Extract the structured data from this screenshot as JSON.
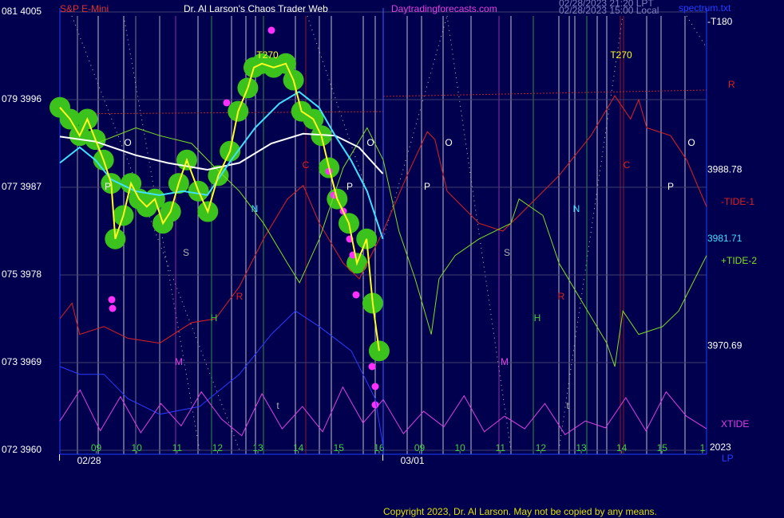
{
  "chart_data": {
    "type": "line",
    "symbol": "S&P E-Mini",
    "title": "Dr. Al Larson's Chaos Trader Web",
    "site": "Daytradingforecasts.com",
    "timestamps": [
      "02/28/2023 21:20 LPT",
      "02/28/2023 15:00 Local"
    ],
    "file": "spectrum.txt",
    "copyright": "Copyright 2023, Dr. Al Larson. May not be copied by any means.",
    "top_right_label": "-T180",
    "right_label": "R",
    "year": "2023",
    "timezone": "LP",
    "grid": true,
    "ylim": [
      3960,
      4005
    ],
    "yticks": [
      {
        "value": 3960,
        "label": "072 3960"
      },
      {
        "value": 3969,
        "label": "073 3969"
      },
      {
        "value": 3978,
        "label": "075 3978"
      },
      {
        "value": 3987,
        "label": "077 3987"
      },
      {
        "value": 3996,
        "label": "079 3996"
      },
      {
        "value": 4005,
        "label": "081 4005"
      }
    ],
    "xlim": [
      -0.9,
      15.1
    ],
    "xticks": [
      {
        "value": 0,
        "label": "09"
      },
      {
        "value": 1,
        "label": "10"
      },
      {
        "value": 2,
        "label": "11"
      },
      {
        "value": 3,
        "label": "12"
      },
      {
        "value": 4,
        "label": "13"
      },
      {
        "value": 5,
        "label": "14"
      },
      {
        "value": 6,
        "label": "15"
      },
      {
        "value": 7,
        "label": "16"
      },
      {
        "value": 8,
        "label": "09"
      },
      {
        "value": 9,
        "label": "10"
      },
      {
        "value": 10,
        "label": "11"
      },
      {
        "value": 11,
        "label": "12"
      },
      {
        "value": 12,
        "label": "13"
      },
      {
        "value": 13,
        "label": "14"
      },
      {
        "value": 14,
        "label": "15"
      },
      {
        "value": 15,
        "label": "1"
      }
    ],
    "dates": [
      {
        "value": 0,
        "label": "02/28"
      },
      {
        "value": 8,
        "label": "03/01"
      }
    ],
    "price_labels": [
      3988.78,
      3981.71,
      3970.69
    ],
    "annotations": [
      "O",
      "O",
      "O",
      "O",
      "P",
      "P",
      "P",
      "P",
      "S",
      "S",
      "N",
      "N",
      "R",
      "R",
      "H",
      "H",
      "M",
      "M",
      "C",
      "C",
      "t",
      "t",
      "T270",
      "T270"
    ],
    "series": [
      {
        "color": "#2a3cff",
        "x": [
          -0.9,
          -0.41,
          0.19,
          0.78,
          1.57,
          2.56,
          3.54,
          4.33,
          4.93,
          5.52,
          6.31,
          6.9,
          7.1
        ],
        "values": [
          3968.6,
          3967.8,
          3967.8,
          3965.3,
          3963.7,
          3964.5,
          3967.8,
          3971.9,
          3974.3,
          3972.7,
          3970.2,
          3965.3,
          3960.4
        ]
      },
      {
        "name": "XTIDE",
        "color": "#e040e0",
        "x": [
          -0.9,
          -0.4,
          0.1,
          0.6,
          1.1,
          1.6,
          2.1,
          2.6,
          3.1,
          3.6,
          4.1,
          4.6,
          5.1,
          5.6,
          6.1,
          6.6,
          7.1,
          7.6,
          8.1,
          8.6,
          9.1,
          9.6,
          10.1,
          10.6,
          11.1,
          11.6,
          12.1,
          12.6,
          13.1,
          13.6,
          14.1,
          14.6,
          15.1
        ],
        "values": [
          3963.0,
          3966.2,
          3962.0,
          3965.5,
          3961.8,
          3964.8,
          3962.5,
          3966.0,
          3963.2,
          3961.5,
          3965.8,
          3962.2,
          3964.5,
          3961.9,
          3966.5,
          3962.8,
          3965.2,
          3961.7,
          3964.0,
          3962.4,
          3965.6,
          3961.9,
          3963.5,
          3962.2,
          3964.8,
          3961.6,
          3963.0,
          3962.3,
          3965.4,
          3962.0,
          3966.0,
          3963.5,
          3962.2
        ]
      },
      {
        "name": "-TIDE-1",
        "color": "#e02020",
        "x": [
          -0.9,
          -0.6,
          -0.41,
          0.19,
          0.78,
          1.57,
          2.36,
          2.95,
          3.54,
          4.14,
          4.73,
          5.12,
          5.52,
          6.11,
          6.51,
          7.1,
          7.69,
          8.19,
          8.38,
          8.68,
          9.47,
          10.06,
          10.46,
          11.45,
          12.24,
          12.83,
          13.22,
          13.42,
          13.62,
          14.21,
          14.61,
          15.1
        ],
        "values": [
          3973.5,
          3975.1,
          3971.9,
          3972.7,
          3971.5,
          3971.0,
          3973.1,
          3973.5,
          3976.8,
          3981.7,
          3985.8,
          3987.2,
          3983.3,
          3979.2,
          3977.6,
          3982.5,
          3988.2,
          3992.7,
          3991.9,
          3986.6,
          3983.3,
          3982.5,
          3984.1,
          3988.2,
          3992.3,
          3996.4,
          3994.0,
          3996.0,
          3993.1,
          3992.3,
          3989.8,
          3985.0
        ]
      },
      {
        "name": "+TIDE-2",
        "color": "#80e020",
        "x": [
          -0.01,
          0.98,
          1.57,
          2.36,
          2.95,
          3.54,
          4.14,
          4.73,
          5.03,
          5.52,
          6.11,
          6.7,
          7.1,
          7.49,
          7.89,
          8.29,
          8.48,
          8.88,
          9.47,
          10.26,
          10.46,
          11.05,
          11.45,
          12.04,
          12.63,
          12.83,
          13.03,
          13.42,
          14.01,
          14.41,
          15.1
        ],
        "values": [
          3991.5,
          3993.1,
          3992.3,
          3991.5,
          3989.0,
          3986.6,
          3983.3,
          3979.2,
          3977.2,
          3981.7,
          3989.0,
          3993.1,
          3989.8,
          3982.5,
          3977.6,
          3971.9,
          3977.6,
          3980.0,
          3981.7,
          3983.3,
          3985.8,
          3984.1,
          3979.2,
          3975.1,
          3971.0,
          3968.6,
          3974.3,
          3971.9,
          3972.7,
          3974.3,
          3980.0
        ]
      },
      {
        "color": "#ffffff",
        "x": [
          -0.9,
          -0.02,
          0.97,
          1.76,
          2.75,
          3.54,
          4.33,
          5.12,
          5.91,
          6.5,
          7.09
        ],
        "values": [
          3992.2,
          3991.7,
          3990.3,
          3989.5,
          3988.8,
          3989.5,
          3991.5,
          3992.5,
          3992.3,
          3991.1,
          3988.4
        ]
      },
      {
        "color": "#40e0ff",
        "x": [
          -0.9,
          -0.41,
          -0.02,
          0.37,
          0.97,
          1.56,
          2.15,
          2.75,
          3.34,
          3.93,
          4.53,
          5.02,
          5.51,
          5.91,
          6.3,
          6.7,
          7.09
        ],
        "values": [
          3989.5,
          3991.1,
          3989.8,
          3987.8,
          3986.6,
          3986.2,
          3986.6,
          3986.2,
          3989.8,
          3993.1,
          3995.6,
          3996.8,
          3995.2,
          3992.3,
          3989.8,
          3986.6,
          3981.7
        ]
      },
      {
        "color": "#ffff20",
        "x": [
          -0.9,
          -0.65,
          -0.41,
          -0.22,
          -0.02,
          0.18,
          0.37,
          0.47,
          0.67,
          0.86,
          1.06,
          1.25,
          1.45,
          1.65,
          1.84,
          2.04,
          2.24,
          2.53,
          2.76,
          3.02,
          3.31,
          3.51,
          3.75,
          3.9,
          4.1,
          4.39,
          4.69,
          4.88,
          5.08,
          5.37,
          5.57,
          5.76,
          5.96,
          6.25,
          6.45,
          6.69,
          6.84,
          7.0
        ],
        "values": [
          3995.2,
          3994.0,
          3992.3,
          3994.0,
          3991.9,
          3989.8,
          3987.4,
          3981.7,
          3984.1,
          3987.4,
          3985.8,
          3985.0,
          3985.8,
          3983.3,
          3984.5,
          3987.4,
          3989.8,
          3986.6,
          3984.5,
          3988.2,
          3990.7,
          3994.8,
          3997.2,
          3999.3,
          3999.7,
          3999.3,
          3999.7,
          3998.0,
          3994.8,
          3994.0,
          3992.3,
          3989.0,
          3985.8,
          3983.3,
          3979.2,
          3981.7,
          3975.1,
          3970.2
        ]
      }
    ]
  }
}
